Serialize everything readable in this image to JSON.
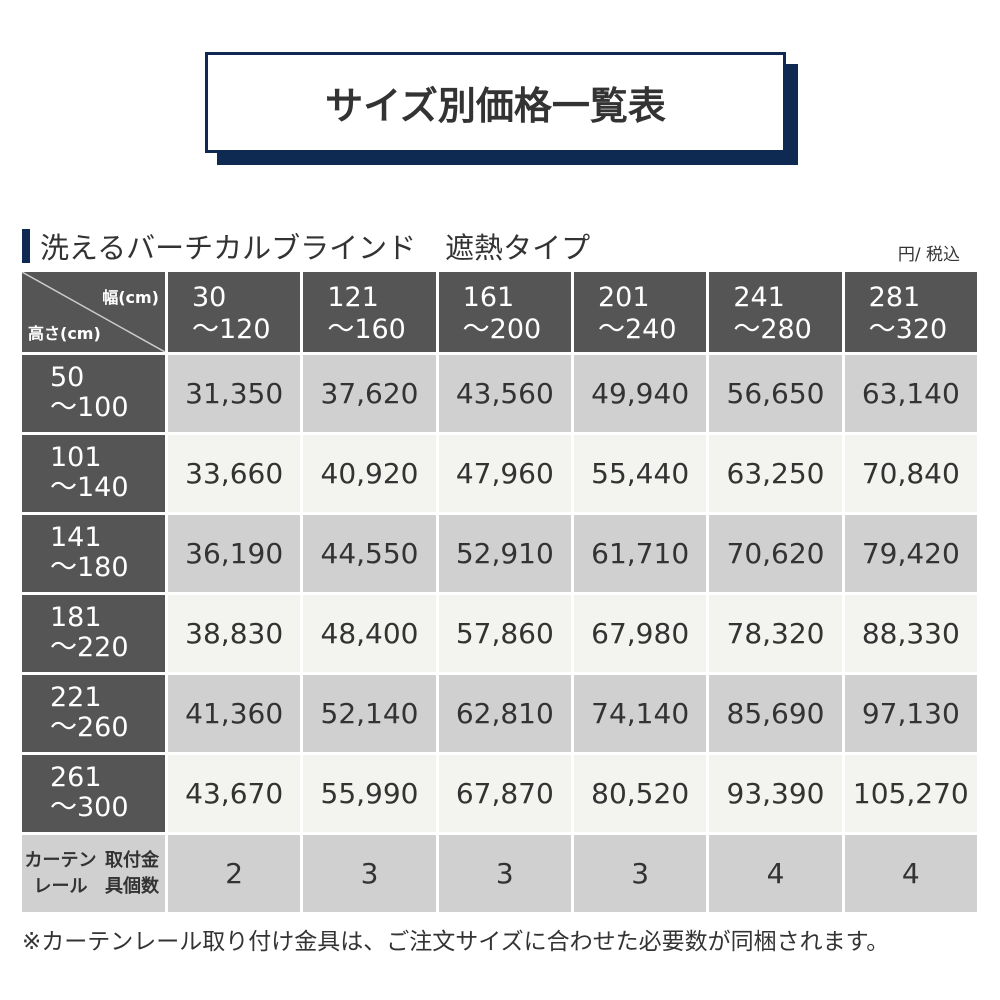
{
  "title": "サイズ別価格一覧表",
  "section_title": "洗えるバーチカルブラインド　遮熱タイプ",
  "unit": "円/ 税込",
  "corner": {
    "width_label": "幅(cm)",
    "height_label": "高さ(cm)"
  },
  "columns": [
    [
      "30",
      "～120"
    ],
    [
      "121",
      "～160"
    ],
    [
      "161",
      "～200"
    ],
    [
      "201",
      "～240"
    ],
    [
      "241",
      "～280"
    ],
    [
      "281",
      "～320"
    ]
  ],
  "rows": [
    {
      "h": [
        "50",
        "～100"
      ],
      "v": [
        "31,350",
        "37,620",
        "43,560",
        "49,940",
        "56,650",
        "63,140"
      ]
    },
    {
      "h": [
        "101",
        "～140"
      ],
      "v": [
        "33,660",
        "40,920",
        "47,960",
        "55,440",
        "63,250",
        "70,840"
      ]
    },
    {
      "h": [
        "141",
        "～180"
      ],
      "v": [
        "36,190",
        "44,550",
        "52,910",
        "61,710",
        "70,620",
        "79,420"
      ]
    },
    {
      "h": [
        "181",
        "～220"
      ],
      "v": [
        "38,830",
        "48,400",
        "57,860",
        "67,980",
        "78,320",
        "88,330"
      ]
    },
    {
      "h": [
        "221",
        "～260"
      ],
      "v": [
        "41,360",
        "52,140",
        "62,810",
        "74,140",
        "85,690",
        "97,130"
      ]
    },
    {
      "h": [
        "261",
        "～300"
      ],
      "v": [
        "43,670",
        "55,990",
        "67,870",
        "80,520",
        "93,390",
        "105,270"
      ]
    }
  ],
  "bracket_row": {
    "label": [
      "カーテンレール",
      "取付金具個数"
    ],
    "v": [
      "2",
      "3",
      "3",
      "3",
      "4",
      "4"
    ]
  },
  "note": "※カーテンレール取り付け金具は、ご注文サイズに合わせた必要数が同梱されます。",
  "colors": {
    "navy": "#0e2a52",
    "header": "#555555",
    "row_dark": "#d0d0d0",
    "row_light": "#f3f3ef"
  }
}
